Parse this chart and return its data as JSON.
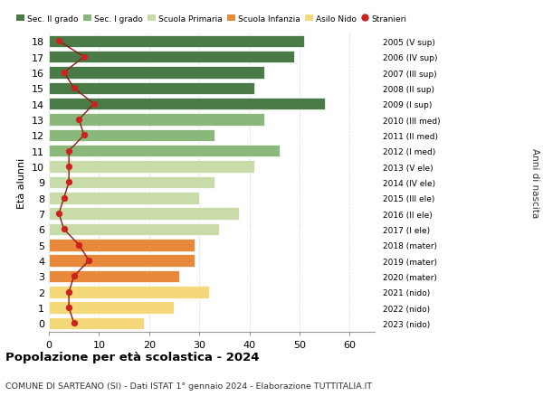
{
  "ages": [
    0,
    1,
    2,
    3,
    4,
    5,
    6,
    7,
    8,
    9,
    10,
    11,
    12,
    13,
    14,
    15,
    16,
    17,
    18
  ],
  "bar_values": [
    19,
    25,
    32,
    26,
    29,
    29,
    34,
    38,
    30,
    33,
    41,
    46,
    33,
    43,
    55,
    41,
    43,
    49,
    51
  ],
  "bar_colors": [
    "#f5d87a",
    "#f5d87a",
    "#f5d87a",
    "#e8883a",
    "#e8883a",
    "#e8883a",
    "#c8dba8",
    "#c8dba8",
    "#c8dba8",
    "#c8dba8",
    "#c8dba8",
    "#8ab87a",
    "#8ab87a",
    "#8ab87a",
    "#4a7a45",
    "#4a7a45",
    "#4a7a45",
    "#4a7a45",
    "#4a7a45"
  ],
  "stranieri": [
    5,
    4,
    4,
    5,
    8,
    6,
    3,
    2,
    3,
    4,
    4,
    4,
    7,
    6,
    9,
    5,
    3,
    7,
    2
  ],
  "right_labels": [
    "2023 (nido)",
    "2022 (nido)",
    "2021 (nido)",
    "2020 (mater)",
    "2019 (mater)",
    "2018 (mater)",
    "2017 (I ele)",
    "2016 (II ele)",
    "2015 (III ele)",
    "2014 (IV ele)",
    "2013 (V ele)",
    "2012 (I med)",
    "2011 (II med)",
    "2010 (III med)",
    "2009 (I sup)",
    "2008 (II sup)",
    "2007 (III sup)",
    "2006 (IV sup)",
    "2005 (V sup)"
  ],
  "legend_labels": [
    "Sec. II grado",
    "Sec. I grado",
    "Scuola Primaria",
    "Scuola Infanzia",
    "Asilo Nido",
    "Stranieri"
  ],
  "legend_colors": [
    "#4a7a45",
    "#8ab87a",
    "#c8dba8",
    "#e8883a",
    "#f5d87a",
    "#cc2222"
  ],
  "title": "Popolazione per età scolastica - 2024",
  "subtitle": "COMUNE DI SARTEANO (SI) - Dati ISTAT 1° gennaio 2024 - Elaborazione TUTTITALIA.IT",
  "xlabel_right": "Anni di nascita",
  "ylabel": "Età alunni",
  "xlim": [
    0,
    65
  ],
  "xticks": [
    0,
    10,
    20,
    30,
    40,
    50,
    60
  ],
  "bar_height": 0.78,
  "bg_color": "#ffffff",
  "grid_color": "#cccccc",
  "stranieri_color": "#cc2222",
  "stranieri_line_color": "#8b1a1a"
}
